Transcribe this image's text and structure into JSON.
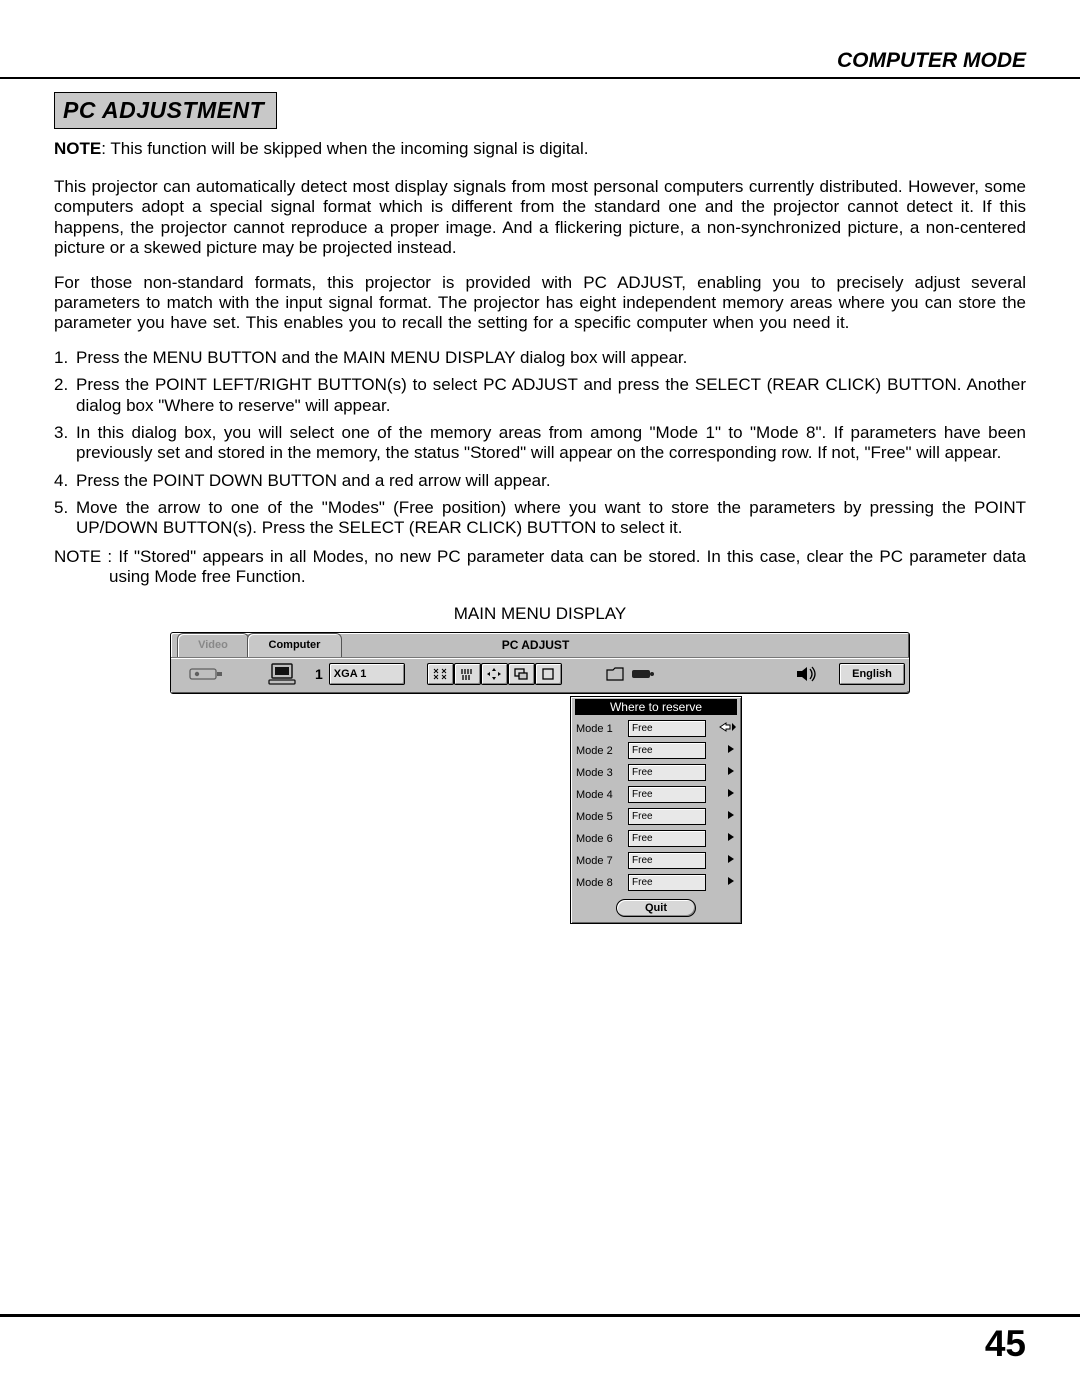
{
  "header": "COMPUTER MODE",
  "section_title": "PC ADJUSTMENT",
  "note_label": "NOTE",
  "note_text": ": This function will be skipped when the incoming signal is digital.",
  "para1": "This projector can automatically detect most display signals from most personal computers currently distributed. However, some computers adopt a special signal format which is different from the standard one and the projector cannot detect it. If this happens, the projector cannot reproduce a proper image. And a flickering picture, a non-synchronized picture, a non-centered picture or a skewed picture may be projected instead.",
  "para2": "For those non-standard formats, this projector is provided with PC ADJUST, enabling you to precisely adjust several parameters to match with the input signal format. The projector has eight independent memory areas where you can store the parameter you have set. This enables you to recall the setting for a specific computer when you need it.",
  "steps": {
    "s1": "Press the MENU BUTTON and the MAIN MENU DISPLAY dialog box will appear.",
    "s2": "Press the POINT LEFT/RIGHT BUTTON(s) to select PC ADJUST and press the SELECT (REAR CLICK) BUTTON. Another dialog box \"Where to reserve\" will appear.",
    "s3": "In this dialog box, you will select one of the memory areas from among \"Mode 1\" to \"Mode 8\". If parameters have been previously set and stored in the memory, the status \"Stored\" will appear on the corresponding row. If not, \"Free\" will appear.",
    "s4": "Press the POINT DOWN BUTTON and a red arrow will appear.",
    "s5": "Move the arrow to one of the \"Modes\" (Free position) where you want to store the parameters by pressing the POINT UP/DOWN BUTTON(s). Press the SELECT (REAR CLICK) BUTTON to select it."
  },
  "note2": "NOTE : If \"Stored\" appears in all Modes, no new PC parameter data can be stored. In this case, clear the PC parameter data using Mode free Function.",
  "menu_label": "MAIN MENU DISPLAY",
  "osd": {
    "tab_video": "Video",
    "tab_computer": "Computer",
    "pcadjust": "PC ADJUST",
    "signal": "XGA 1",
    "lang": "English",
    "comp_num": "1"
  },
  "dropdown": {
    "title": "Where to reserve",
    "modes": [
      {
        "label": "Mode  1",
        "status": "Free",
        "selected": true
      },
      {
        "label": "Mode  2",
        "status": "Free",
        "selected": false
      },
      {
        "label": "Mode  3",
        "status": "Free",
        "selected": false
      },
      {
        "label": "Mode  4",
        "status": "Free",
        "selected": false
      },
      {
        "label": "Mode  5",
        "status": "Free",
        "selected": false
      },
      {
        "label": "Mode  6",
        "status": "Free",
        "selected": false
      },
      {
        "label": "Mode  7",
        "status": "Free",
        "selected": false
      },
      {
        "label": "Mode  8",
        "status": "Free",
        "selected": false
      }
    ],
    "quit": "Quit"
  },
  "page_number": "45"
}
